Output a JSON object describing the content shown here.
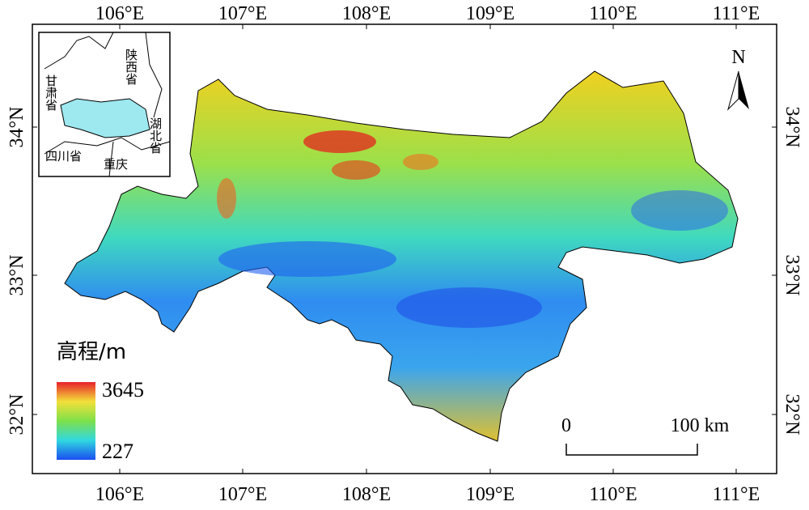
{
  "map": {
    "x_labels": [
      "106°E",
      "107°E",
      "108°E",
      "109°E",
      "110°E",
      "111°E"
    ],
    "y_labels": [
      "34°N",
      "33°N",
      "32°N"
    ],
    "north": "N",
    "legend": {
      "title": "高程/m",
      "max": 3645,
      "min": 227
    },
    "scale_bar": {
      "start": "0",
      "end": "100 km"
    },
    "inset": {
      "shaanxi": "陕西省",
      "gansu": "甘肃省",
      "hubei": "湖北省",
      "sichuan": "四川省",
      "chongqing": "重庆"
    }
  }
}
